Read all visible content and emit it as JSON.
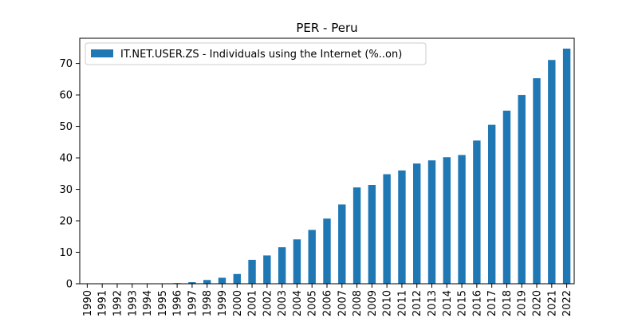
{
  "chart_data": {
    "type": "bar",
    "title": "PER - Peru",
    "xlabel": "",
    "ylabel": "",
    "ylim": [
      0,
      78
    ],
    "yticks": [
      0,
      10,
      20,
      30,
      40,
      50,
      60,
      70
    ],
    "legend_position": "top-left",
    "grid": false,
    "bar_color": "#1f77b4",
    "categories": [
      "1990",
      "1991",
      "1992",
      "1993",
      "1994",
      "1995",
      "1996",
      "1997",
      "1998",
      "1999",
      "2000",
      "2001",
      "2002",
      "2003",
      "2004",
      "2005",
      "2006",
      "2007",
      "2008",
      "2009",
      "2010",
      "2011",
      "2012",
      "2013",
      "2014",
      "2015",
      "2016",
      "2017",
      "2018",
      "2019",
      "2020",
      "2021",
      "2022"
    ],
    "series": [
      {
        "name": "IT.NET.USER.ZS - Individuals using the Internet (%..on)",
        "values": [
          0,
          0,
          0,
          0,
          0.02,
          0.1,
          0.2,
          0.5,
          1.2,
          1.9,
          3.1,
          7.6,
          9.0,
          11.6,
          14.1,
          17.1,
          20.7,
          25.2,
          30.6,
          31.4,
          34.8,
          36.0,
          38.2,
          39.2,
          40.2,
          40.9,
          45.5,
          50.5,
          55.0,
          60.0,
          65.3,
          71.1,
          74.7
        ]
      }
    ]
  }
}
